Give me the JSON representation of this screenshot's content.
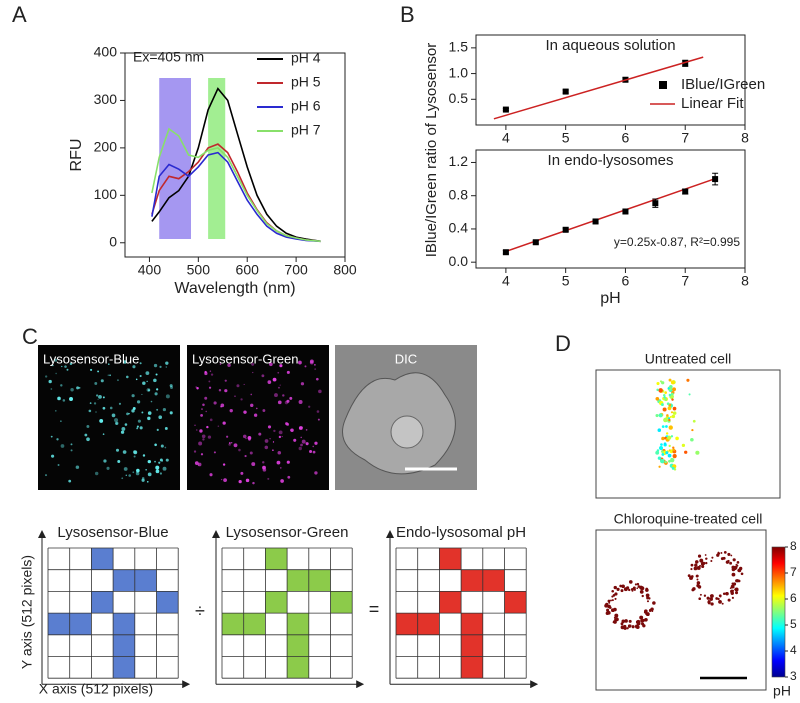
{
  "panel_labels": [
    "A",
    "B",
    "C",
    "D"
  ],
  "chart_data": [
    {
      "type": "line",
      "annotation": "Ex=405 nm",
      "x_label": "Wavelength (nm)",
      "y_label": "RFU",
      "xlim": [
        350,
        800
      ],
      "xticks": [
        400,
        500,
        600,
        700,
        800
      ],
      "ylim": [
        -30,
        400
      ],
      "yticks": [
        0,
        100,
        200,
        300,
        400
      ],
      "bands": [
        {
          "x": [
            420,
            485
          ],
          "color": "#9b8cf0"
        },
        {
          "x": [
            520,
            555
          ],
          "color": "#98ec86"
        }
      ],
      "x": [
        405,
        420,
        440,
        460,
        480,
        500,
        520,
        540,
        560,
        580,
        600,
        620,
        640,
        660,
        680,
        700,
        720,
        750
      ],
      "series": [
        {
          "name": "pH 4",
          "color": "#000000",
          "values": [
            45,
            65,
            95,
            110,
            140,
            200,
            280,
            325,
            300,
            230,
            160,
            100,
            60,
            35,
            20,
            12,
            8,
            3
          ]
        },
        {
          "name": "pH 5",
          "color": "#c0282d",
          "values": [
            60,
            110,
            140,
            135,
            150,
            170,
            200,
            208,
            190,
            150,
            105,
            70,
            42,
            25,
            15,
            10,
            6,
            3
          ]
        },
        {
          "name": "pH 6",
          "color": "#2a2ad0",
          "values": [
            55,
            140,
            165,
            155,
            140,
            160,
            185,
            190,
            170,
            130,
            90,
            60,
            35,
            20,
            12,
            8,
            5,
            3
          ]
        },
        {
          "name": "pH 7",
          "color": "#88e06a",
          "values": [
            105,
            180,
            240,
            225,
            185,
            180,
            195,
            200,
            180,
            140,
            100,
            68,
            40,
            25,
            15,
            10,
            6,
            3
          ]
        }
      ]
    },
    {
      "type": "scatter",
      "title": "In aqueous solution",
      "y_label": "IBlue/IGreen ratio of Lysosensor",
      "xlim": [
        3.5,
        8
      ],
      "xticks": [
        4,
        5,
        6,
        7,
        8
      ],
      "ylim": [
        0,
        1.75
      ],
      "yticks": [
        0.5,
        {
          "value": 1,
          "label": "1.0"
        },
        1.5
      ],
      "series": [
        {
          "name": "IBlue/IGreen",
          "color": "#000000",
          "mode": "markers",
          "x": [
            4,
            5,
            6,
            7
          ],
          "values": [
            0.3,
            0.65,
            0.88,
            1.2
          ],
          "errors": [
            0.02,
            0.03,
            0.04,
            0.06
          ]
        },
        {
          "name": "Linear Fit",
          "color": "#cc2222",
          "mode": "line",
          "x": [
            3.8,
            7.3
          ],
          "values": [
            0.12,
            1.32
          ]
        }
      ]
    },
    {
      "type": "scatter",
      "title": "In endo-lysosomes",
      "annotation": "y=0.25x-0.87, R²=0.995",
      "x_label": "pH",
      "xlim": [
        3.5,
        8
      ],
      "xticks": [
        4,
        5,
        6,
        7,
        8
      ],
      "ylim": [
        -0.07,
        1.35
      ],
      "yticks": [
        {
          "value": 0,
          "label": "0.0"
        },
        0.4,
        0.8,
        1.2
      ],
      "series": [
        {
          "color": "#cc2222",
          "mode": "line",
          "x": [
            4,
            7.5
          ],
          "values": [
            0.13,
            1.005
          ]
        },
        {
          "color": "#000000",
          "mode": "markers",
          "x": [
            4,
            4.5,
            5,
            5.5,
            6,
            6.5,
            7,
            7.5
          ],
          "values": [
            0.12,
            0.24,
            0.39,
            0.49,
            0.61,
            0.71,
            0.85,
            1.0
          ],
          "errors": [
            0.02,
            0.02,
            0.02,
            0.02,
            0.02,
            0.05,
            0.03,
            0.07
          ]
        }
      ]
    }
  ],
  "panel_c": {
    "images": [
      "Lysosensor-Blue",
      "Lysosensor-Green",
      "DIC"
    ],
    "grids": [
      "Lysosensor-Blue",
      "Lysosensor-Green",
      "Endo-lysosomal pH"
    ],
    "operators": [
      "÷",
      "="
    ],
    "y_axis": "Y axis (512 pixels)",
    "x_axis": "X axis (512 pixels)"
  },
  "panel_d": {
    "titles": [
      "Untreated cell",
      "Chloroquine-treated cell"
    ],
    "colorbar": {
      "lim": [
        3,
        8
      ],
      "ticks": [
        3,
        4,
        5,
        6,
        7,
        8
      ],
      "label": "pH"
    }
  }
}
